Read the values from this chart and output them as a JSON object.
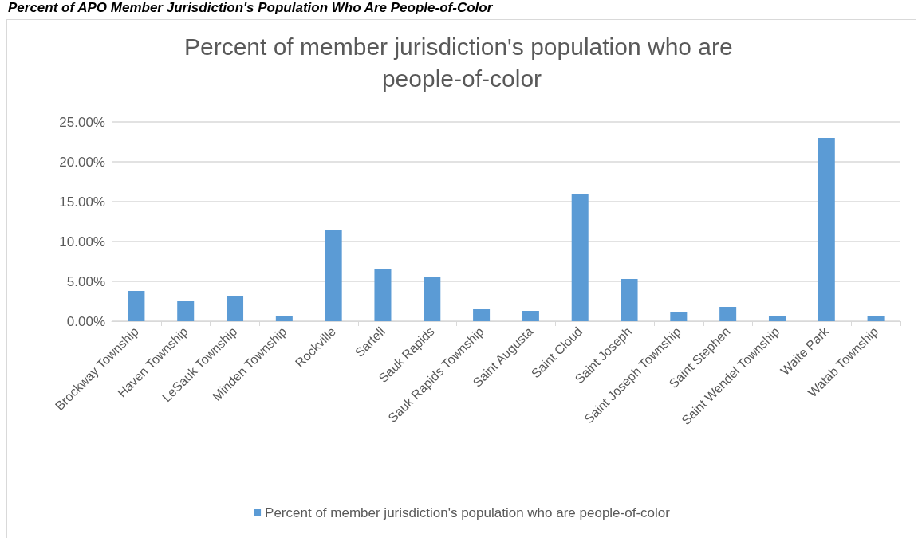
{
  "chart_data": {
    "type": "bar",
    "title": "Percent of member jurisdiction's population who are people-of-color",
    "annotations": [
      "Percent of APO Member Jurisdiction's Population Who Are People-of-Color"
    ],
    "categories": [
      "Brockway Township",
      "Haven Township",
      "LeSauk Township",
      "Minden Township",
      "Rockville",
      "Sartell",
      "Sauk Rapids",
      "Sauk Rapids Township",
      "Saint Augusta",
      "Saint Cloud",
      "Saint Joseph",
      "Saint Joseph Township",
      "Saint Stephen",
      "Saint Wendel Township",
      "Waite Park",
      "Watab Township"
    ],
    "series": [
      {
        "name": "Percent of member jurisdiction's population who are people-of-color",
        "color": "#5b9bd5",
        "values": [
          3.8,
          2.5,
          3.1,
          0.6,
          11.4,
          6.5,
          5.5,
          1.5,
          1.3,
          15.9,
          5.3,
          1.2,
          1.8,
          0.6,
          23.0,
          0.7
        ]
      }
    ],
    "ylim": [
      0,
      25
    ],
    "yticks": [
      {
        "value": 0,
        "label": "0.00%"
      },
      {
        "value": 5,
        "label": "5.00%"
      },
      {
        "value": 10,
        "label": "10.00%"
      },
      {
        "value": 15,
        "label": "15.00%"
      },
      {
        "value": 20,
        "label": "20.00%"
      },
      {
        "value": 25,
        "label": "25.00%"
      }
    ],
    "grid": "y",
    "legend": "bottom"
  }
}
